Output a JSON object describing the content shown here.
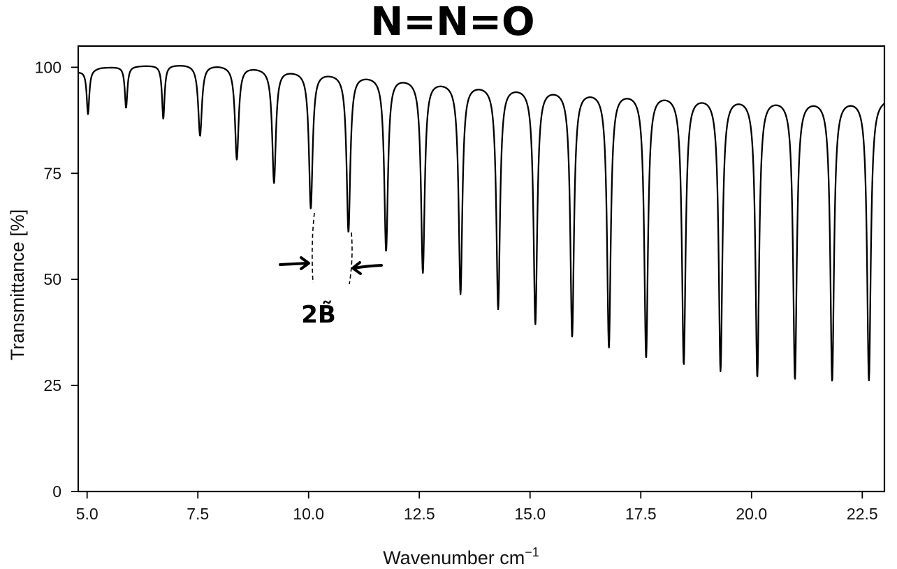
{
  "chart_data": {
    "type": "line",
    "title": "N=N=O",
    "xlabel": "Wavenumber  cm",
    "xlabel_superscript": "−1",
    "ylabel": "Transmittance [%]",
    "xlim": [
      4.8,
      23.0
    ],
    "ylim": [
      0,
      105
    ],
    "xticks": [
      5.0,
      7.5,
      10.0,
      12.5,
      15.0,
      17.5,
      20.0,
      22.5
    ],
    "xtick_labels": [
      "5.0",
      "7.5",
      "10.0",
      "12.5",
      "15.0",
      "17.5",
      "20.0",
      "22.5"
    ],
    "yticks": [
      0,
      25,
      50,
      75,
      100
    ],
    "ytick_labels": [
      "0",
      "25",
      "50",
      "75",
      "100"
    ],
    "grid": false,
    "series": [
      {
        "color": "#000000",
        "baseline": {
          "x": [
            4.8,
            5.3,
            6.3,
            7.2,
            8.0,
            8.8,
            9.6,
            10.4,
            11.2,
            12.0,
            12.8,
            13.7,
            14.6,
            15.5,
            16.3,
            17.1,
            18.0,
            18.8,
            19.7,
            20.5,
            21.4,
            22.2,
            23.0
          ],
          "y": [
            99.0,
            100.0,
            100.5,
            100.8,
            100.7,
            100.2,
            99.5,
            99.0,
            98.5,
            98.0,
            97.2,
            96.5,
            96.0,
            95.5,
            95.0,
            94.7,
            94.3,
            93.8,
            93.5,
            93.2,
            93.0,
            93.0,
            93.0
          ]
        },
        "minima": {
          "x": [
            5.02,
            5.88,
            6.72,
            7.55,
            8.38,
            9.22,
            10.05,
            10.9,
            11.75,
            12.58,
            13.43,
            14.28,
            15.12,
            15.95,
            16.78,
            17.62,
            18.47,
            19.3,
            20.13,
            20.98,
            21.82,
            22.65
          ],
          "y": [
            89.0,
            90.5,
            88.0,
            84.0,
            78.5,
            73.0,
            67.0,
            61.5,
            57.0,
            52.0,
            47.0,
            43.5,
            40.0,
            37.0,
            34.5,
            32.0,
            30.5,
            29.0,
            27.5,
            27.0,
            26.5,
            26.5
          ]
        }
      }
    ],
    "annotations": [
      {
        "text": "2B̃",
        "x": 10.47,
        "y": 42
      }
    ]
  }
}
